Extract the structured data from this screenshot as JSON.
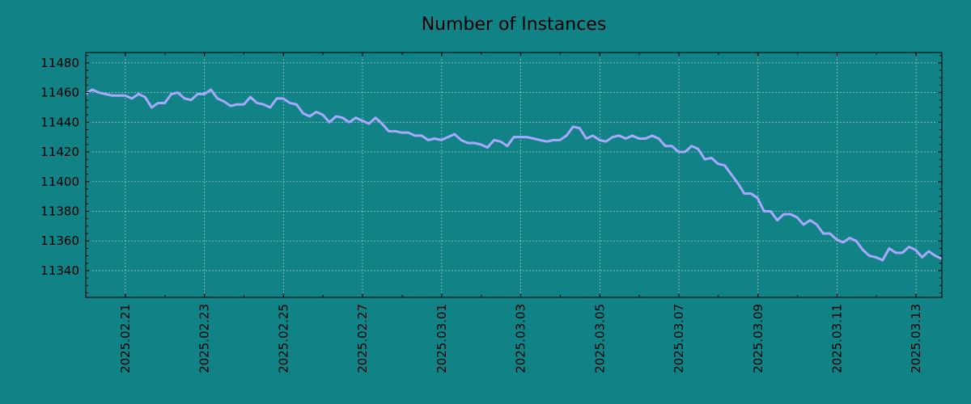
{
  "chart_data": {
    "type": "line",
    "title": "Number of Instances",
    "xlabel": "",
    "ylabel": "",
    "x_start": "2025.02.20",
    "x_end": "2025.03.13",
    "xlim": [
      "2025.02.20",
      "2025.03.13"
    ],
    "ylim": [
      11322,
      11487
    ],
    "y_ticks": [
      11340,
      11360,
      11380,
      11400,
      11420,
      11440,
      11460,
      11480
    ],
    "x_ticks": [
      "2025.02.21",
      "2025.02.23",
      "2025.02.25",
      "2025.02.27",
      "2025.03.01",
      "2025.03.03",
      "2025.03.05",
      "2025.03.07",
      "2025.03.09",
      "2025.03.11",
      "2025.03.13"
    ],
    "grid": true,
    "legend": false,
    "colors": {
      "background": "#118285",
      "line": "#a8a8ff"
    },
    "series": [
      {
        "values": [
          11459,
          11462,
          11460,
          11459,
          11458,
          11458,
          11458,
          11456,
          11459,
          11457,
          11450,
          11453,
          11453,
          11459,
          11460,
          11456,
          11455,
          11459,
          11459,
          11462,
          11456,
          11454,
          11451,
          11452,
          11452,
          11457,
          11453,
          11452,
          11450,
          11456,
          11456,
          11453,
          11452,
          11446,
          11444,
          11447,
          11445,
          11440,
          11444,
          11443,
          11440,
          11443,
          11441,
          11439,
          11443,
          11439,
          11434,
          11434,
          11433,
          11433,
          11431,
          11431,
          11428,
          11429,
          11428,
          11430,
          11432,
          11428,
          11426,
          11426,
          11425,
          11423,
          11428,
          11427,
          11424,
          11430,
          11430,
          11430,
          11429,
          11428,
          11427,
          11428,
          11428,
          11431,
          11437,
          11436,
          11429,
          11431,
          11428,
          11427,
          11430,
          11431,
          11429,
          11431,
          11429,
          11429,
          11431,
          11429,
          11424,
          11424,
          11420,
          11420,
          11424,
          11422,
          11415,
          11416,
          11412,
          11411,
          11405,
          11399,
          11392,
          11392,
          11389,
          11380,
          11380,
          11374,
          11378,
          11378,
          11376,
          11371,
          11374,
          11371,
          11365,
          11365,
          11361,
          11359,
          11362,
          11360,
          11354,
          11350,
          11349,
          11347,
          11355,
          11352,
          11352,
          11356,
          11354,
          11349,
          11353,
          11350,
          11348
        ]
      }
    ]
  }
}
